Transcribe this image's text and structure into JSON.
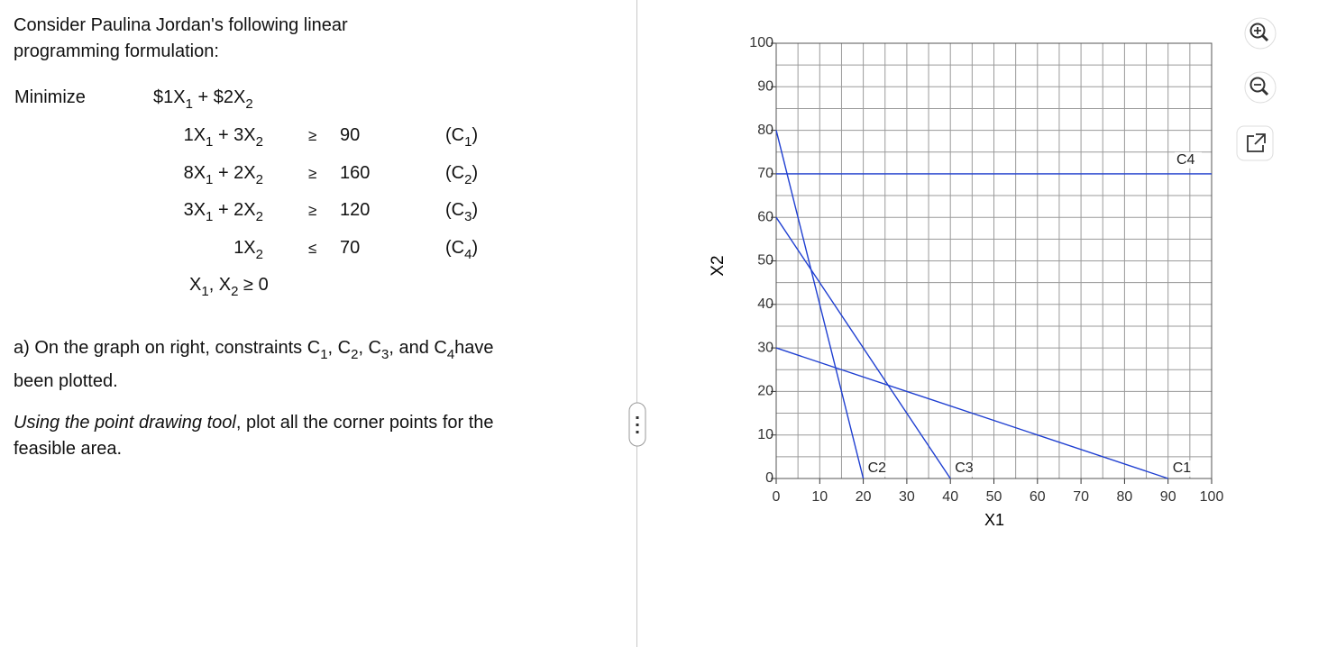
{
  "intro": {
    "lines": [
      [
        {
          "text": "Consider Paulina Jordan's following linear"
        }
      ],
      [
        {
          "text": "programming formulation:"
        }
      ]
    ]
  },
  "formulation": {
    "objective_label": "Minimize",
    "objective": [
      {
        "text": "$1X",
        "sub": "1"
      },
      {
        "text": " + $2X",
        "sub": "2"
      }
    ],
    "constraints": [
      {
        "lhs": [
          {
            "text": "1X",
            "sub": "1"
          },
          {
            "text": " + 3X",
            "sub": "2"
          }
        ],
        "sign": "≥",
        "rhs": 90,
        "label": [
          {
            "text": "(C",
            "sub": "1"
          },
          {
            "text": ")"
          }
        ]
      },
      {
        "lhs": [
          {
            "text": "8X",
            "sub": "1"
          },
          {
            "text": " + 2X",
            "sub": "2"
          }
        ],
        "sign": "≥",
        "rhs": 160,
        "label": [
          {
            "text": "(C",
            "sub": "2"
          },
          {
            "text": ")"
          }
        ]
      },
      {
        "lhs": [
          {
            "text": "3X",
            "sub": "1"
          },
          {
            "text": " + 2X",
            "sub": "2"
          }
        ],
        "sign": "≥",
        "rhs": 120,
        "label": [
          {
            "text": "(C",
            "sub": "3"
          },
          {
            "text": ")"
          }
        ]
      },
      {
        "lhs": [
          {
            "text": "1X",
            "sub": "2"
          }
        ],
        "sign": "≤",
        "rhs": 70,
        "label": [
          {
            "text": "(C",
            "sub": "4"
          },
          {
            "text": ")"
          }
        ]
      }
    ],
    "nonnegativity": [
      {
        "text": "X",
        "sub": "1"
      },
      {
        "text": ", X",
        "sub": "2"
      },
      {
        "text": " ≥ 0"
      }
    ]
  },
  "part_a": {
    "lines": [
      [
        {
          "text": "a) On the graph on right, constraints C",
          "sub": "1"
        },
        {
          "text": ", C",
          "sub": "2"
        },
        {
          "text": ", C",
          "sub": "3"
        },
        {
          "text": ", and C",
          "sub": "4"
        },
        {
          "text": "have"
        }
      ],
      [
        {
          "text": "been plotted."
        }
      ]
    ]
  },
  "instruction": {
    "lines": [
      [
        {
          "text": "Using the point drawing tool",
          "italic": true
        },
        {
          "text": ", plot all the corner points for the"
        }
      ],
      [
        {
          "text": "feasible area."
        }
      ]
    ]
  },
  "chart_data": {
    "type": "line",
    "x_label": "X1",
    "y_label": "X2",
    "xlim": [
      0,
      100
    ],
    "ylim": [
      0,
      100
    ],
    "xticks": [
      0,
      10,
      20,
      30,
      40,
      50,
      60,
      70,
      80,
      90,
      100
    ],
    "yticks": [
      0,
      10,
      20,
      30,
      40,
      50,
      60,
      70,
      80,
      90,
      100
    ],
    "grid": true,
    "series": [
      {
        "name": "C1",
        "color": "#1f3fd1",
        "x": [
          0,
          90
        ],
        "values": [
          30,
          0
        ]
      },
      {
        "name": "C2",
        "color": "#1f3fd1",
        "x": [
          0,
          20
        ],
        "values": [
          80,
          0
        ]
      },
      {
        "name": "C3",
        "color": "#1f3fd1",
        "x": [
          0,
          40
        ],
        "values": [
          60,
          0
        ]
      },
      {
        "name": "C4",
        "color": "#1f3fd1",
        "x": [
          0,
          100
        ],
        "values": [
          70,
          70
        ]
      }
    ]
  }
}
